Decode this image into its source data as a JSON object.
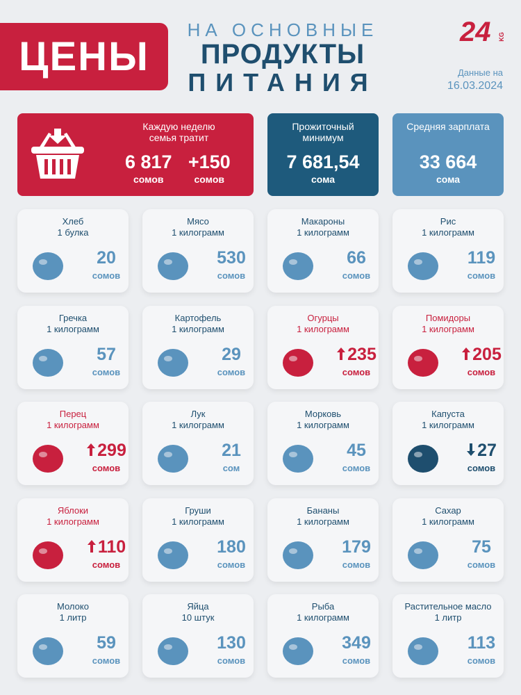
{
  "header": {
    "title": "ЦЕНЫ",
    "subtitle_lines": [
      "НА ОСНОВНЫЕ",
      "ПРОДУКТЫ",
      "ПИТАНИЯ"
    ],
    "logo": "24",
    "logo_sub": "KG",
    "date_label": "Данные на",
    "date": "16.03.2024"
  },
  "summary": [
    {
      "label": "Каждую неделю семья тратит",
      "values": [
        {
          "value": "6 817",
          "unit": "сомов"
        },
        {
          "value": "+150",
          "unit": "сомов"
        }
      ]
    },
    {
      "label": "Прожиточный минимум",
      "values": [
        {
          "value": "7 681,54",
          "unit": "сома"
        }
      ]
    },
    {
      "label": "Средняя зарплата",
      "values": [
        {
          "value": "33 664",
          "unit": "сома"
        }
      ]
    }
  ],
  "items": [
    {
      "name": "Хлеб",
      "quantity": "1 булка",
      "price": 20,
      "unit": "сомов",
      "trend": "none"
    },
    {
      "name": "Мясо",
      "quantity": "1 килограмм",
      "price": 530,
      "unit": "сомов",
      "trend": "none"
    },
    {
      "name": "Макароны",
      "quantity": "1 килограмм",
      "price": 66,
      "unit": "сомов",
      "trend": "none"
    },
    {
      "name": "Рис",
      "quantity": "1 килограмм",
      "price": 119,
      "unit": "сомов",
      "trend": "none"
    },
    {
      "name": "Гречка",
      "quantity": "1 килограмм",
      "price": 57,
      "unit": "сомов",
      "trend": "none"
    },
    {
      "name": "Картофель",
      "quantity": "1 килограмм",
      "price": 29,
      "unit": "сомов",
      "trend": "none"
    },
    {
      "name": "Огурцы",
      "quantity": "1 килограмм",
      "price": 235,
      "unit": "сомов",
      "trend": "up"
    },
    {
      "name": "Помидоры",
      "quantity": "1 килограмм",
      "price": 205,
      "unit": "сомов",
      "trend": "up"
    },
    {
      "name": "Перец",
      "quantity": "1 килограмм",
      "price": 299,
      "unit": "сомов",
      "trend": "up"
    },
    {
      "name": "Лук",
      "quantity": "1 килограмм",
      "price": 21,
      "unit": "сом",
      "trend": "none"
    },
    {
      "name": "Морковь",
      "quantity": "1 килограмм",
      "price": 45,
      "unit": "сомов",
      "trend": "none"
    },
    {
      "name": "Капуста",
      "quantity": "1 килограмм",
      "price": 27,
      "unit": "сомов",
      "trend": "down"
    },
    {
      "name": "Яблоки",
      "quantity": "1 килограмм",
      "price": 110,
      "unit": "сомов",
      "trend": "up"
    },
    {
      "name": "Груши",
      "quantity": "1 килограмм",
      "price": 180,
      "unit": "сомов",
      "trend": "none"
    },
    {
      "name": "Бананы",
      "quantity": "1 килограмм",
      "price": 179,
      "unit": "сомов",
      "trend": "none"
    },
    {
      "name": "Сахар",
      "quantity": "1 килограмм",
      "price": 75,
      "unit": "сомов",
      "trend": "none"
    },
    {
      "name": "Молоко",
      "quantity": "1 литр",
      "price": 59,
      "unit": "сомов",
      "trend": "none"
    },
    {
      "name": "Яйца",
      "quantity": "10 штук",
      "price": 130,
      "unit": "сомов",
      "trend": "none"
    },
    {
      "name": "Рыба",
      "quantity": "1 килограмм",
      "price": 349,
      "unit": "сомов",
      "trend": "none"
    },
    {
      "name": "Растительное масло",
      "quantity": "1 литр",
      "price": 113,
      "unit": "сомов",
      "trend": "none"
    }
  ]
}
